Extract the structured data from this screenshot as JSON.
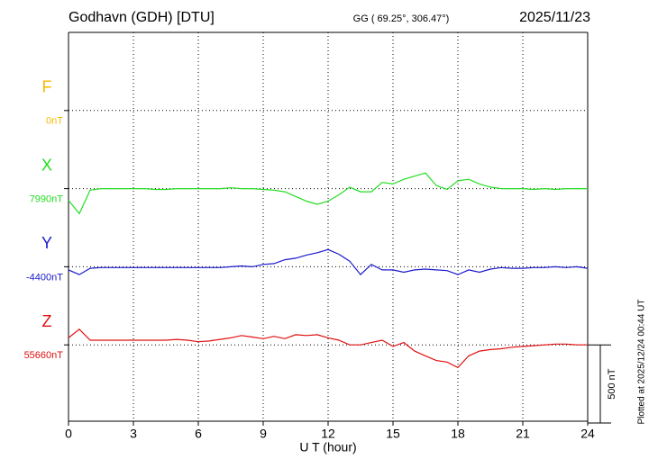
{
  "chart_data": {
    "type": "line",
    "title": "Godhavn (GDH)  [DTU]",
    "subtitle": "GG ( 69.25°, 306.47°)",
    "date": "2025/11/23",
    "x_label": "U T (hour)",
    "footnote": "Plotted at 2025/12/24 00:44 UT",
    "scale": {
      "value": 500,
      "label": "500 nT"
    },
    "xlim": [
      0,
      24
    ],
    "xticks": [
      0,
      3,
      6,
      9,
      12,
      15,
      18,
      21,
      24
    ],
    "grid": true,
    "x": [
      0,
      0.5,
      1,
      1.5,
      2,
      2.5,
      3,
      3.5,
      4,
      4.5,
      5,
      5.5,
      6,
      6.5,
      7,
      7.5,
      8,
      8.5,
      9,
      9.5,
      10,
      10.5,
      11,
      11.5,
      12,
      12.5,
      13,
      13.5,
      14,
      14.5,
      15,
      15.5,
      16,
      16.5,
      17,
      17.5,
      18,
      18.5,
      19,
      19.5,
      20,
      20.5,
      21,
      21.5,
      22,
      22.5,
      23,
      23.5,
      24
    ],
    "series": [
      {
        "name": "F",
        "color": "#f5b800",
        "baseline": {
          "value": 0,
          "label": "0nT"
        },
        "values": [
          null,
          null,
          null,
          null,
          null,
          null,
          null,
          null,
          null,
          null,
          null,
          null,
          null,
          null,
          null,
          null,
          null,
          null,
          null,
          null,
          null,
          null,
          null,
          null,
          null,
          null,
          null,
          null,
          null,
          null,
          null,
          null,
          null,
          null,
          null,
          null,
          null,
          null,
          null,
          null,
          null,
          null,
          null,
          null,
          null,
          null,
          null,
          null,
          null
        ]
      },
      {
        "name": "X",
        "color": "#22dd22",
        "baseline": {
          "value": 7990,
          "label": "7990nT"
        },
        "values": [
          7915,
          7830,
          7980,
          7990,
          7990,
          7990,
          7990,
          7990,
          7985,
          7985,
          7990,
          7990,
          7990,
          7990,
          7990,
          7995,
          7990,
          7990,
          7985,
          7980,
          7970,
          7940,
          7910,
          7890,
          7910,
          7950,
          8000,
          7970,
          7970,
          8030,
          8020,
          8050,
          8070,
          8090,
          8010,
          7985,
          8040,
          8050,
          8020,
          8000,
          7990,
          7990,
          7990,
          7985,
          7990,
          7985,
          7990,
          7990,
          7990
        ]
      },
      {
        "name": "Y",
        "color": "#1a1acc",
        "baseline": {
          "value": -4400,
          "label": "-4400nT"
        },
        "values": [
          -4420,
          -4450,
          -4410,
          -4405,
          -4405,
          -4405,
          -4405,
          -4405,
          -4405,
          -4405,
          -4405,
          -4405,
          -4405,
          -4405,
          -4405,
          -4400,
          -4395,
          -4400,
          -4385,
          -4380,
          -4355,
          -4345,
          -4325,
          -4310,
          -4290,
          -4320,
          -4365,
          -4450,
          -4385,
          -4420,
          -4420,
          -4435,
          -4420,
          -4415,
          -4420,
          -4425,
          -4450,
          -4420,
          -4435,
          -4415,
          -4405,
          -4410,
          -4410,
          -4405,
          -4405,
          -4400,
          -4405,
          -4400,
          -4410
        ]
      },
      {
        "name": "Z",
        "color": "#e01010",
        "baseline": {
          "value": 55660,
          "label": "55660nT"
        },
        "values": [
          55705,
          55760,
          55690,
          55690,
          55690,
          55690,
          55690,
          55690,
          55690,
          55690,
          55695,
          55690,
          55680,
          55685,
          55695,
          55705,
          55720,
          55710,
          55700,
          55715,
          55700,
          55725,
          55720,
          55725,
          55705,
          55690,
          55660,
          55660,
          55675,
          55690,
          55650,
          55675,
          55620,
          55590,
          55560,
          55550,
          55515,
          55590,
          55620,
          55630,
          55635,
          55645,
          55650,
          55655,
          55660,
          55665,
          55665,
          55660,
          55660
        ]
      }
    ]
  }
}
